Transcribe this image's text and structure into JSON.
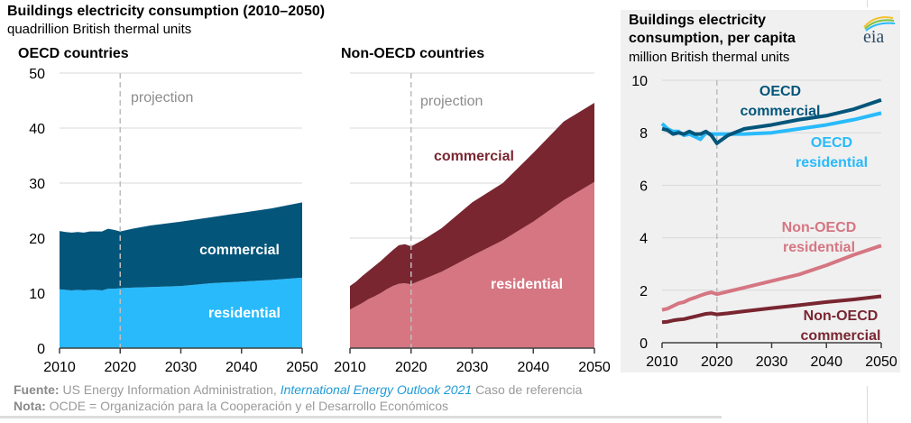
{
  "header": {
    "title": "Buildings electricity consumption (2010–2050)",
    "subtitle": "quadrillion British thermal units"
  },
  "logo": {
    "icon": "eia-logo",
    "text": "eia"
  },
  "footer": {
    "source_label": "Fuente:",
    "source_text": "US Energy Information Administration,",
    "source_italic": "International Energy Outlook 2021",
    "source_tail": "Caso de referencia",
    "note_label": "Nota:",
    "note_text": "OCDE = Organización para la Cooperación y el Desarrollo Económicos"
  },
  "colors": {
    "oecd_commercial": "#03557a",
    "oecd_residential": "#29bafb",
    "nonoecd_commercial": "#792631",
    "nonoecd_residential": "#d57682",
    "projection_line": "#bdbdbd",
    "grid": "#d9d9d9"
  },
  "chart_data": [
    {
      "id": "oecd",
      "type": "area",
      "stacked": true,
      "title": "OECD countries",
      "xlabel": "",
      "ylabel": "quadrillion British thermal units",
      "xlim": [
        2010,
        2050
      ],
      "ylim": [
        0,
        50
      ],
      "xticks": [
        "2010",
        "2020",
        "2030",
        "2040",
        "2050"
      ],
      "yticks": [
        "0",
        "10",
        "20",
        "30",
        "40",
        "50"
      ],
      "grid": true,
      "annotation": {
        "text": "projection",
        "x": 2020
      },
      "x": [
        2010,
        2011,
        2012,
        2013,
        2014,
        2015,
        2016,
        2017,
        2018,
        2019,
        2020,
        2022,
        2025,
        2030,
        2035,
        2040,
        2045,
        2050
      ],
      "series": [
        {
          "name": "residential",
          "label": "residential",
          "values": [
            10.7,
            10.6,
            10.5,
            10.6,
            10.5,
            10.6,
            10.6,
            10.5,
            10.8,
            10.8,
            10.9,
            11.0,
            11.1,
            11.3,
            11.8,
            12.1,
            12.4,
            12.8
          ]
        },
        {
          "name": "commercial",
          "label": "commercial",
          "values": [
            10.6,
            10.5,
            10.5,
            10.5,
            10.5,
            10.6,
            10.6,
            10.7,
            10.9,
            10.7,
            10.3,
            10.7,
            11.2,
            11.7,
            12.0,
            12.5,
            13.0,
            13.7
          ]
        }
      ]
    },
    {
      "id": "nonoecd",
      "type": "area",
      "stacked": true,
      "title": "Non-OECD countries",
      "xlim": [
        2010,
        2050
      ],
      "ylim": [
        0,
        50
      ],
      "xticks": [
        "2010",
        "2020",
        "2030",
        "2040",
        "2050"
      ],
      "grid": true,
      "annotation": {
        "text": "projection",
        "x": 2020
      },
      "x": [
        2010,
        2011,
        2012,
        2013,
        2014,
        2015,
        2016,
        2017,
        2018,
        2019,
        2020,
        2022,
        2025,
        2030,
        2035,
        2040,
        2045,
        2050
      ],
      "series": [
        {
          "name": "residential",
          "label": "residential",
          "values": [
            7.0,
            7.6,
            8.2,
            8.9,
            9.4,
            10.0,
            10.7,
            11.3,
            11.7,
            11.8,
            11.6,
            12.5,
            13.9,
            16.8,
            19.6,
            23.0,
            26.9,
            30.2
          ]
        },
        {
          "name": "commercial",
          "label": "commercial",
          "values": [
            4.3,
            4.5,
            4.9,
            5.1,
            5.5,
            5.8,
            6.1,
            6.5,
            7.0,
            7.1,
            6.9,
            7.2,
            7.9,
            9.7,
            10.4,
            12.5,
            14.3,
            14.4
          ]
        }
      ]
    },
    {
      "id": "percapita",
      "type": "line",
      "title": "Buildings electricity consumption, per capita",
      "ylabel": "million British thermal units",
      "xlim": [
        2010,
        2050
      ],
      "ylim": [
        0,
        10
      ],
      "xticks": [
        "2010",
        "2020",
        "2030",
        "2040",
        "2050"
      ],
      "yticks": [
        "0",
        "2",
        "4",
        "6",
        "8",
        "10"
      ],
      "grid": true,
      "x": [
        2010,
        2011,
        2012,
        2013,
        2014,
        2015,
        2016,
        2017,
        2018,
        2019,
        2020,
        2022,
        2025,
        2030,
        2035,
        2040,
        2045,
        2050
      ],
      "series": [
        {
          "name": "OECD residential",
          "label_lines": [
            "OECD",
            "residential"
          ],
          "values": [
            8.35,
            8.15,
            8.05,
            8.05,
            7.9,
            7.95,
            7.85,
            7.75,
            8.0,
            7.95,
            7.95,
            7.95,
            7.95,
            8.0,
            8.15,
            8.3,
            8.5,
            8.75
          ]
        },
        {
          "name": "OECD commercial",
          "label_lines": [
            "OECD",
            "commercial"
          ],
          "values": [
            8.15,
            8.1,
            7.95,
            8.0,
            7.95,
            8.05,
            7.95,
            7.95,
            8.05,
            7.9,
            7.6,
            7.9,
            8.15,
            8.3,
            8.5,
            8.65,
            8.9,
            9.25
          ]
        },
        {
          "name": "Non-OECD residential",
          "label_lines": [
            "Non-OECD",
            "residential"
          ],
          "values": [
            1.25,
            1.3,
            1.4,
            1.5,
            1.55,
            1.65,
            1.72,
            1.8,
            1.87,
            1.92,
            1.85,
            1.95,
            2.1,
            2.35,
            2.6,
            2.95,
            3.35,
            3.7
          ]
        },
        {
          "name": "Non-OECD commercial",
          "label_lines": [
            "Non-OECD",
            "commercial"
          ],
          "values": [
            0.78,
            0.8,
            0.85,
            0.88,
            0.9,
            0.95,
            1.0,
            1.05,
            1.1,
            1.12,
            1.08,
            1.12,
            1.2,
            1.32,
            1.43,
            1.55,
            1.65,
            1.77
          ]
        }
      ]
    }
  ]
}
